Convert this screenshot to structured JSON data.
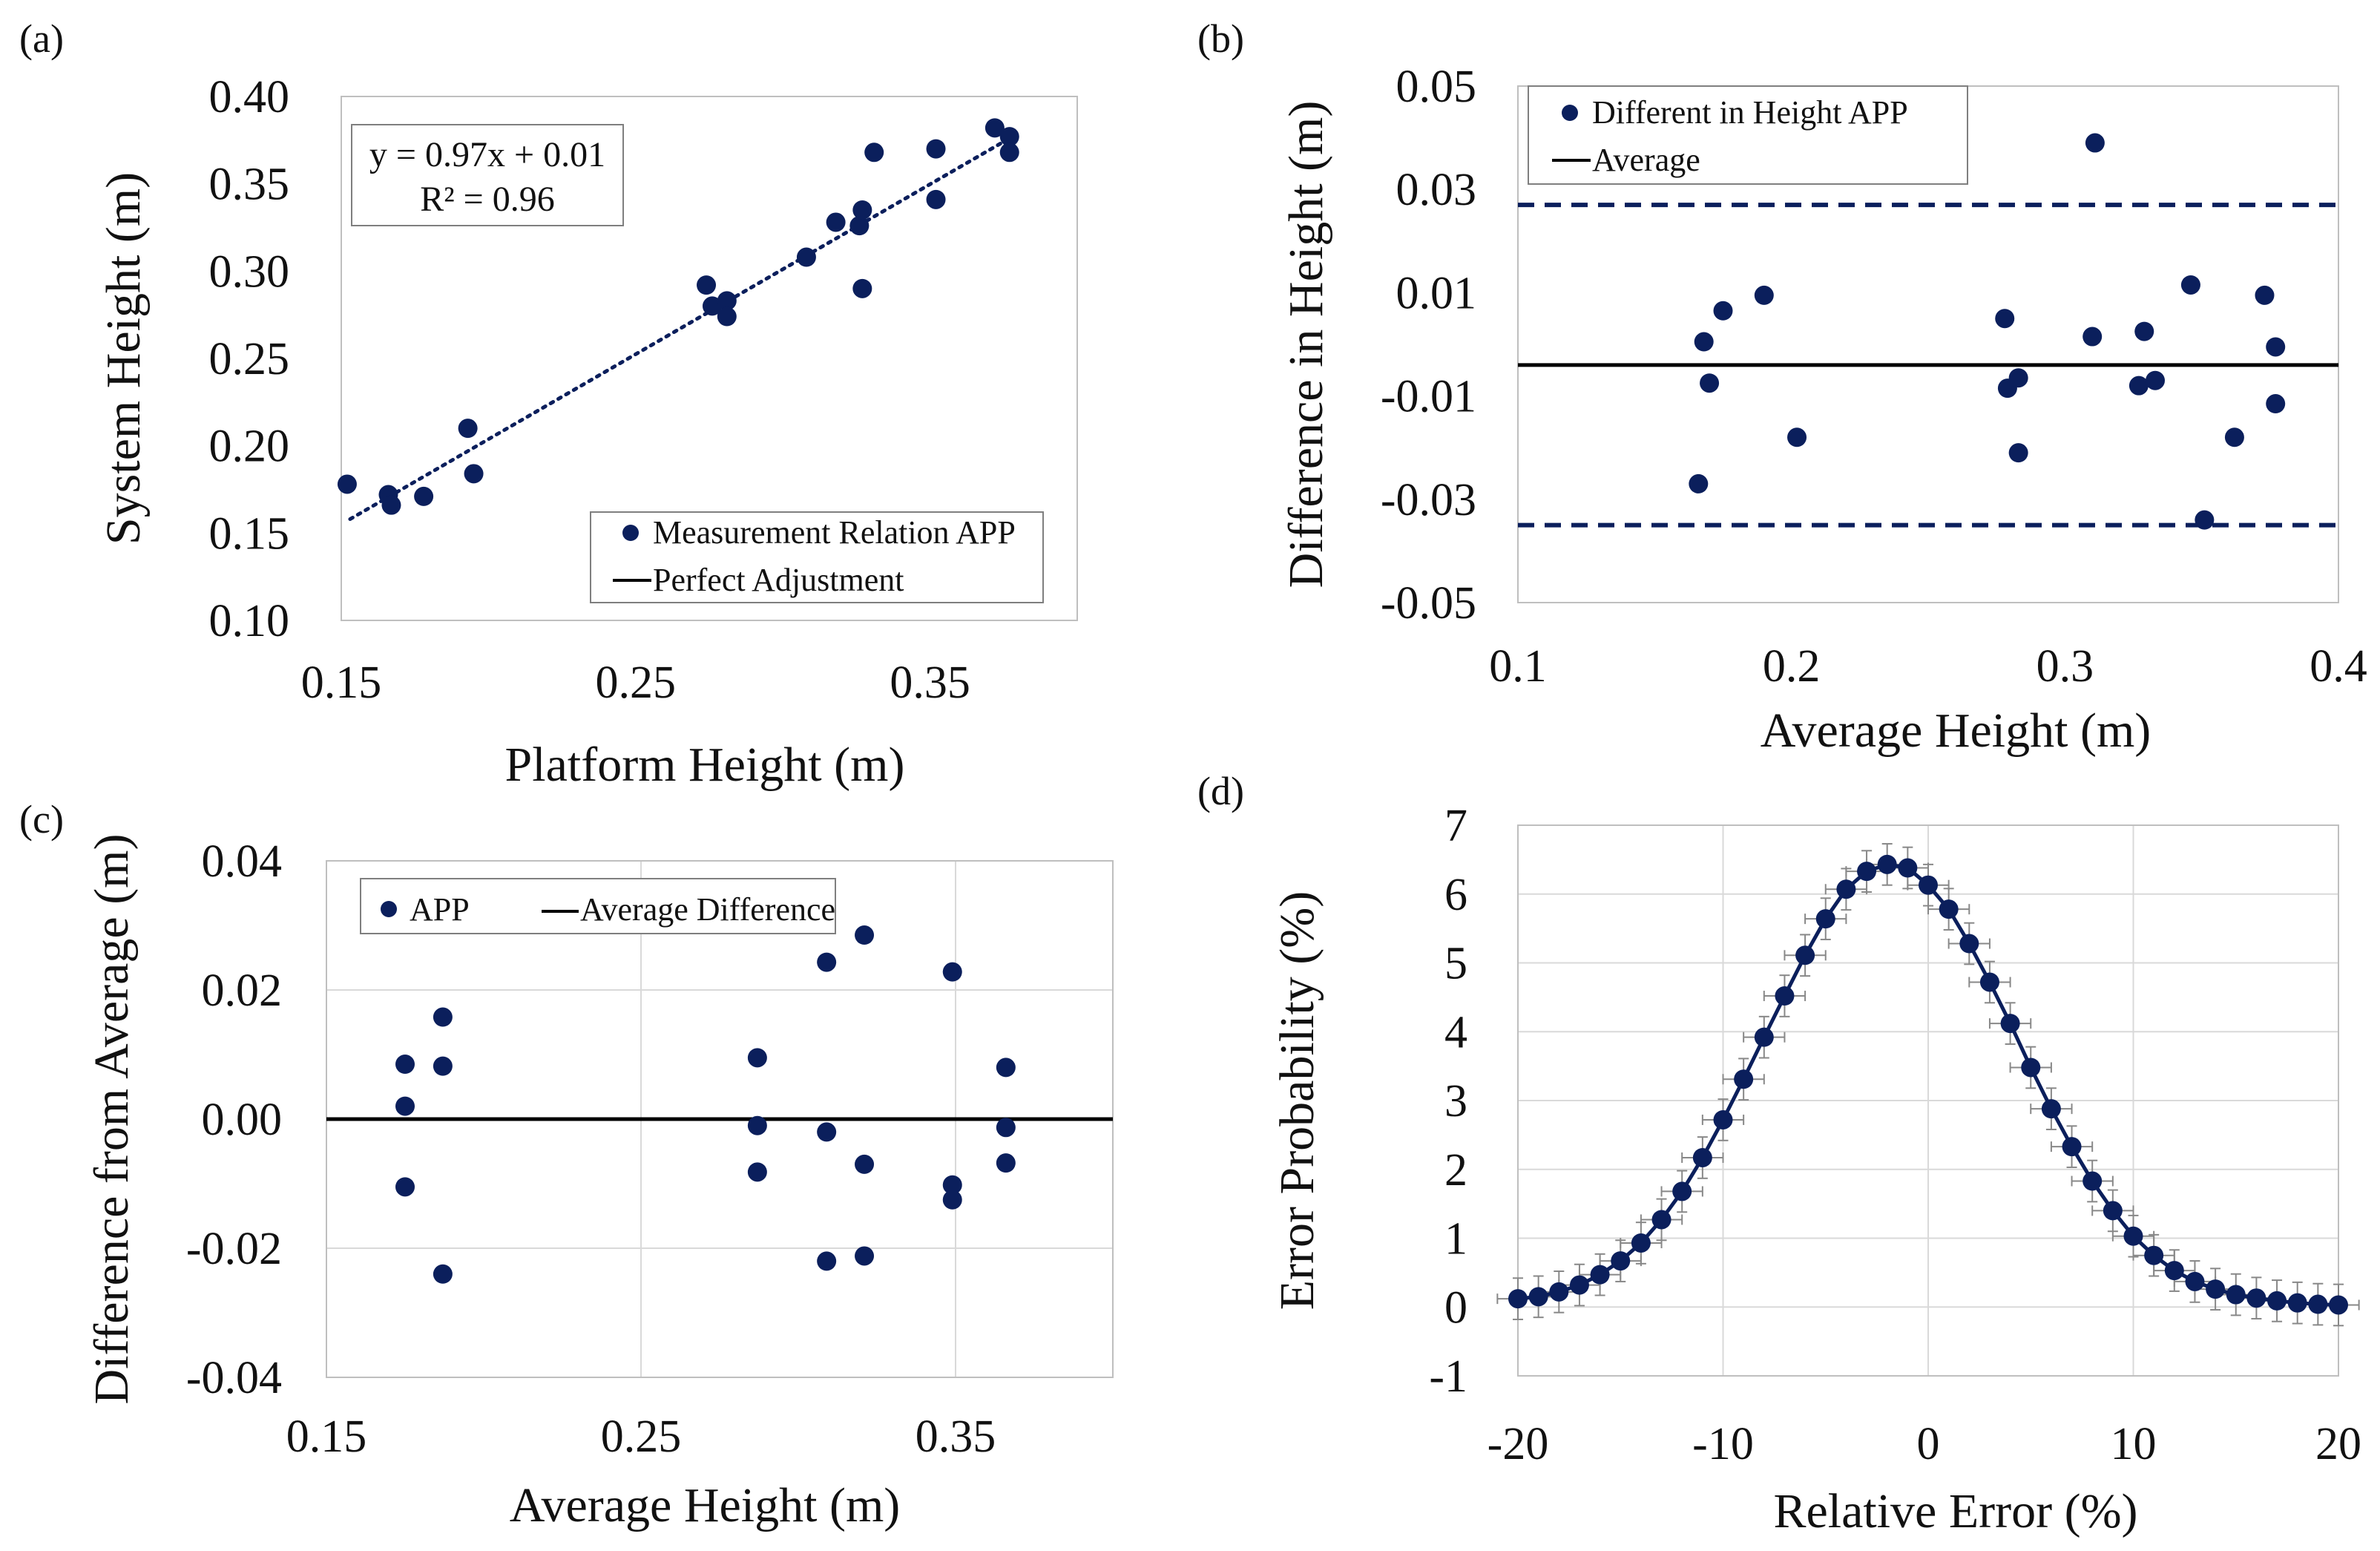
{
  "colors": {
    "marker": "#0b1f5c",
    "line": "#000000",
    "grid": "#d9d9d9",
    "frame": "#bfbfbf",
    "legend_frame": "#7f7f7f"
  },
  "chart_data": [
    {
      "id": "a",
      "panel_label": "(a)",
      "type": "scatter",
      "title": "",
      "xlabel": "Platform Height (m)",
      "ylabel": "System Height (m)",
      "xlim": [
        0.15,
        0.4
      ],
      "ylim": [
        0.1,
        0.4
      ],
      "xticks": [
        0.15,
        0.25,
        0.35
      ],
      "xtick_labels": [
        "0.15",
        "0.25",
        "0.35"
      ],
      "yticks": [
        0.1,
        0.15,
        0.2,
        0.25,
        0.3,
        0.35,
        0.4
      ],
      "ytick_labels": [
        "0.10",
        "0.15",
        "0.20",
        "0.25",
        "0.30",
        "0.35",
        "0.40"
      ],
      "equation_lines": [
        "y = 0.97x + 0.01",
        "R² = 0.96"
      ],
      "legend": {
        "position": "bottom-right",
        "entries": [
          {
            "type": "marker",
            "label": "Measurement Relation APP"
          },
          {
            "type": "line",
            "label": "Perfect Adjustment"
          }
        ]
      },
      "trendline": {
        "style": "dotted",
        "x": [
          0.153,
          0.378
        ],
        "y": [
          0.158,
          0.377
        ]
      },
      "series": [
        {
          "name": "Measurement Relation APP",
          "x": [
            0.152,
            0.166,
            0.167,
            0.178,
            0.193,
            0.195,
            0.274,
            0.276,
            0.281,
            0.281,
            0.308,
            0.318,
            0.326,
            0.327,
            0.327,
            0.331,
            0.352,
            0.352,
            0.372,
            0.377,
            0.377
          ],
          "y": [
            0.178,
            0.172,
            0.166,
            0.171,
            0.21,
            0.184,
            0.292,
            0.28,
            0.283,
            0.274,
            0.308,
            0.328,
            0.326,
            0.335,
            0.29,
            0.368,
            0.37,
            0.341,
            0.382,
            0.377,
            0.368
          ]
        }
      ]
    },
    {
      "id": "b",
      "panel_label": "(b)",
      "type": "scatter",
      "title": "",
      "xlabel": "Average Height (m)",
      "ylabel": "Difference in Height (m)",
      "xlim": [
        0.1,
        0.4
      ],
      "ylim": [
        -0.05,
        0.05
      ],
      "xticks": [
        0.1,
        0.2,
        0.3,
        0.4
      ],
      "xtick_labels": [
        "0.1",
        "0.2",
        "0.3",
        "0.4"
      ],
      "yticks": [
        -0.05,
        -0.03,
        -0.01,
        0.01,
        0.03,
        0.05
      ],
      "ytick_labels": [
        "-0.05",
        "-0.03",
        "-0.01",
        "0.01",
        "0.03",
        "0.05"
      ],
      "legend": {
        "position": "top-left",
        "entries": [
          {
            "type": "marker",
            "label": "Different in Height APP"
          },
          {
            "type": "line",
            "label": "Average"
          }
        ]
      },
      "mean_line": -0.004,
      "limit_lines": [
        0.027,
        -0.035
      ],
      "series": [
        {
          "name": "Different in Height APP",
          "x": [
            0.166,
            0.168,
            0.17,
            0.175,
            0.19,
            0.202,
            0.278,
            0.279,
            0.283,
            0.283,
            0.31,
            0.311,
            0.327,
            0.329,
            0.333,
            0.346,
            0.351,
            0.362,
            0.373,
            0.377,
            0.377
          ],
          "y": [
            -0.027,
            0.0005,
            -0.0075,
            0.0065,
            0.0095,
            -0.018,
            0.005,
            -0.0085,
            -0.0065,
            -0.021,
            0.0015,
            0.039,
            -0.008,
            0.0025,
            -0.007,
            0.0115,
            -0.034,
            -0.018,
            0.0095,
            -0.0005,
            -0.0115
          ]
        }
      ]
    },
    {
      "id": "c",
      "panel_label": "(c)",
      "type": "scatter",
      "title": "",
      "xlabel": "Average Height (m)",
      "ylabel": "Difference from Average (m)",
      "xlim": [
        0.15,
        0.4
      ],
      "ylim": [
        -0.04,
        0.04
      ],
      "xticks": [
        0.15,
        0.25,
        0.35
      ],
      "xtick_labels": [
        "0.15",
        "0.25",
        "0.35"
      ],
      "yticks": [
        -0.04,
        -0.02,
        0.0,
        0.02,
        0.04
      ],
      "ytick_labels": [
        "-0.04",
        "-0.02",
        "0.00",
        "0.02",
        "0.04"
      ],
      "legend": {
        "position": "top-left",
        "entries": [
          {
            "type": "marker",
            "label": "APP"
          },
          {
            "type": "line",
            "label": "Average Difference"
          }
        ]
      },
      "mean_line": 0.0,
      "series": [
        {
          "name": "APP",
          "x": [
            0.175,
            0.175,
            0.175,
            0.187,
            0.187,
            0.187,
            0.287,
            0.287,
            0.287,
            0.309,
            0.309,
            0.309,
            0.321,
            0.321,
            0.321,
            0.349,
            0.349,
            0.349,
            0.366,
            0.366,
            0.366
          ],
          "y": [
            0.0085,
            0.002,
            -0.0105,
            0.0158,
            0.0082,
            -0.024,
            0.0095,
            -0.001,
            -0.0082,
            0.0243,
            -0.002,
            -0.022,
            0.0285,
            -0.007,
            -0.0212,
            0.0228,
            -0.0102,
            -0.0125,
            0.008,
            -0.0013,
            -0.0068
          ]
        }
      ]
    },
    {
      "id": "d",
      "panel_label": "(d)",
      "type": "line",
      "title": "",
      "xlabel": "Relative Error (%)",
      "ylabel": "Error Probability (%)",
      "xlim": [
        -20,
        20
      ],
      "ylim": [
        -1,
        7
      ],
      "xticks": [
        -20,
        -10,
        0,
        10,
        20
      ],
      "xtick_labels": [
        "-20",
        "-10",
        "0",
        "10",
        "20"
      ],
      "yticks": [
        -1,
        0,
        1,
        2,
        3,
        4,
        5,
        6,
        7
      ],
      "ytick_labels": [
        "-1",
        "0",
        "1",
        "2",
        "3",
        "4",
        "5",
        "6",
        "7"
      ],
      "error_bars": {
        "x_err": 1.0,
        "y_err": 0.3
      },
      "series": [
        {
          "name": "Error Probability",
          "x": [
            -20,
            -19,
            -18,
            -17,
            -16,
            -15,
            -14,
            -13,
            -12,
            -11,
            -10,
            -9,
            -8,
            -7,
            -6,
            -5,
            -4,
            -3,
            -2,
            -1,
            0,
            1,
            2,
            3,
            4,
            5,
            6,
            7,
            8,
            9,
            10,
            11,
            12,
            13,
            14,
            15,
            16,
            17,
            18,
            19,
            20
          ],
          "y": [
            0.12,
            0.15,
            0.22,
            0.32,
            0.47,
            0.67,
            0.93,
            1.27,
            1.68,
            2.17,
            2.72,
            3.31,
            3.92,
            4.52,
            5.11,
            5.64,
            6.07,
            6.33,
            6.43,
            6.38,
            6.13,
            5.78,
            5.28,
            4.72,
            4.12,
            3.48,
            2.88,
            2.33,
            1.83,
            1.4,
            1.03,
            0.75,
            0.53,
            0.37,
            0.26,
            0.18,
            0.13,
            0.09,
            0.06,
            0.04,
            0.03
          ]
        }
      ]
    }
  ]
}
